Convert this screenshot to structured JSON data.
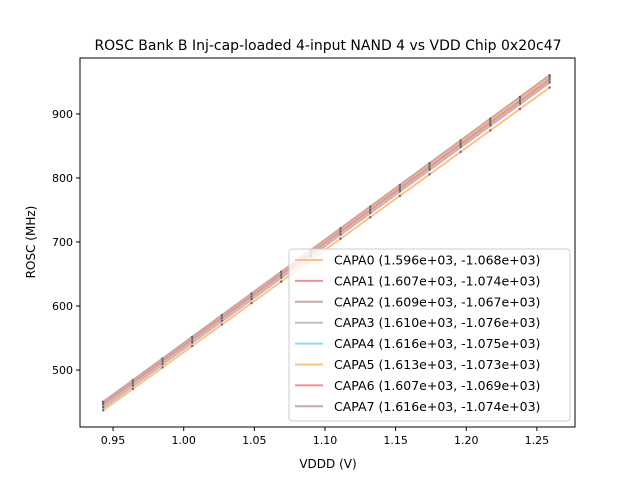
{
  "chart_data": {
    "type": "line",
    "title": "ROSC Bank B Inj-cap-loaded 4-input NAND 4 vs VDD Chip 0x20c47",
    "xlabel": "VDDD (V)",
    "ylabel": "ROSC (MHz)",
    "xlim": [
      0.9266,
      1.277
    ],
    "ylim": [
      411,
      987.5
    ],
    "x_ticks": [
      0.95,
      1.0,
      1.05,
      1.1,
      1.15,
      1.2,
      1.25
    ],
    "x_tick_labels": [
      "0.95",
      "1.00",
      "1.05",
      "1.10",
      "1.15",
      "1.20",
      "1.25"
    ],
    "y_ticks": [
      500,
      600,
      700,
      800,
      900
    ],
    "y_tick_labels": [
      "500",
      "600",
      "700",
      "800",
      "900"
    ],
    "grid": false,
    "legend_placement": "lower-right",
    "x": [
      0.943,
      0.964,
      0.985,
      1.006,
      1.027,
      1.048,
      1.069,
      1.09,
      1.111,
      1.132,
      1.153,
      1.174,
      1.196,
      1.217,
      1.238,
      1.259
    ],
    "series": [
      {
        "name": "CAPA0",
        "label": "CAPA0 (1.596e+03, -1.068e+03)",
        "slope": 1596,
        "intercept": -1068,
        "color": "#ffbf86"
      },
      {
        "name": "CAPA1",
        "label": "CAPA1 (1.607e+03, -1.074e+03)",
        "slope": 1607,
        "intercept": -1074,
        "color": "#ea9393"
      },
      {
        "name": "CAPA2",
        "label": "CAPA2 (1.609e+03, -1.067e+03)",
        "slope": 1609,
        "intercept": -1067,
        "color": "#c5aaa5"
      },
      {
        "name": "CAPA3",
        "label": "CAPA3 (1.610e+03, -1.076e+03)",
        "slope": 1610,
        "intercept": -1076,
        "color": "#bfbfbf"
      },
      {
        "name": "CAPA4",
        "label": "CAPA4 (1.616e+03, -1.075e+03)",
        "slope": 1616,
        "intercept": -1075,
        "color": "#8bdee7"
      },
      {
        "name": "CAPA5",
        "label": "CAPA5 (1.613e+03, -1.073e+03)",
        "slope": 1613,
        "intercept": -1073,
        "color": "#ffbf86"
      },
      {
        "name": "CAPA6",
        "label": "CAPA6 (1.607e+03, -1.069e+03)",
        "slope": 1607,
        "intercept": -1069,
        "color": "#ea9393"
      },
      {
        "name": "CAPA7",
        "label": "CAPA7 (1.616e+03, -1.074e+03)",
        "slope": 1616,
        "intercept": -1074,
        "color": "#c5aaa5"
      }
    ]
  }
}
